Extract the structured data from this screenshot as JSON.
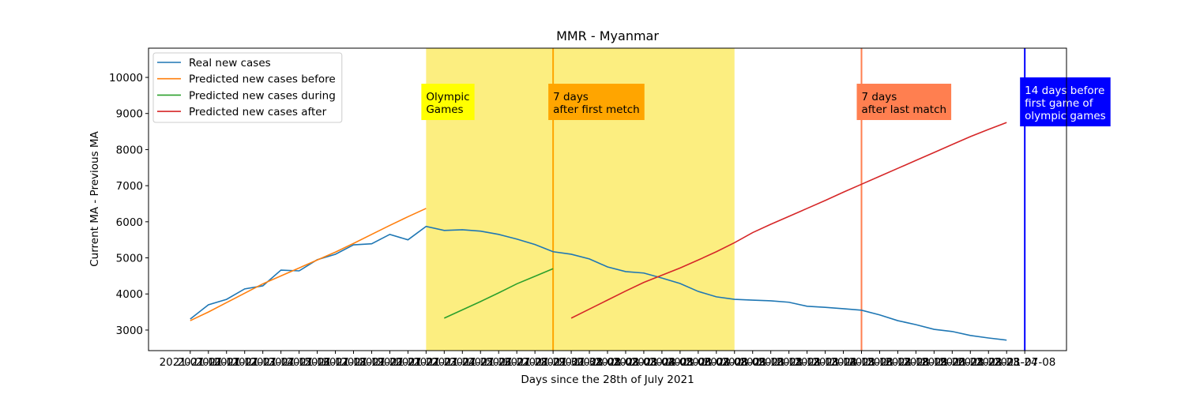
{
  "chart_data": {
    "type": "line",
    "title": "MMR - Myanmar",
    "xlabel": "Days since the 28th of July 2021",
    "ylabel": "Current MA - Previous MA",
    "categories": [
      "2021-07-10",
      "2021-07-11",
      "2021-07-12",
      "2021-07-13",
      "2021-07-14",
      "2021-07-15",
      "2021-07-16",
      "2021-07-17",
      "2021-07-18",
      "2021-07-19",
      "2021-07-20",
      "2021-07-21",
      "2021-07-22",
      "2021-07-23",
      "2021-07-24",
      "2021-07-25",
      "2021-07-26",
      "2021-07-27",
      "2021-07-28",
      "2021-07-29",
      "2021-07-30",
      "2021-07-31",
      "2021-08-01",
      "2021-08-02",
      "2021-08-03",
      "2021-08-04",
      "2021-08-05",
      "2021-08-06",
      "2021-08-07",
      "2021-08-08",
      "2021-08-09",
      "2021-08-10",
      "2021-08-11",
      "2021-08-12",
      "2021-08-13",
      "2021-08-14",
      "2021-08-15",
      "2021-08-16",
      "2021-08-17",
      "2021-08-18",
      "2021-08-19",
      "2021-08-20",
      "2021-08-21",
      "2021-08-22",
      "2021-08-23",
      "2021-08-24",
      "2021-07-08"
    ],
    "series": [
      {
        "name": "Real new cases",
        "color": "#1f77b4",
        "values": [
          3306,
          3700,
          3850,
          4140,
          4225,
          4660,
          4640,
          4950,
          5100,
          5360,
          5390,
          5650,
          5500,
          5870,
          5760,
          5780,
          5740,
          5650,
          5520,
          5370,
          5170,
          5100,
          4970,
          4750,
          4620,
          4580,
          4440,
          4290,
          4070,
          3920,
          3850,
          3830,
          3810,
          3770,
          3660,
          3630,
          3590,
          3550,
          3420,
          3260,
          3150,
          3020,
          2960,
          2850,
          2780,
          2720,
          null
        ]
      },
      {
        "name": "Predicted new cases before",
        "color": "#ff7f0e",
        "values": [
          3260,
          3500,
          3760,
          4020,
          4280,
          4500,
          4720,
          4940,
          5160,
          5400,
          5650,
          5900,
          6140,
          6370,
          null,
          null,
          null,
          null,
          null,
          null,
          null,
          null,
          null,
          null,
          null,
          null,
          null,
          null,
          null,
          null,
          null,
          null,
          null,
          null,
          null,
          null,
          null,
          null,
          null,
          null,
          null,
          null,
          null,
          null,
          null,
          null,
          null
        ]
      },
      {
        "name": "Predicted new cases during",
        "color": "#2ca02c",
        "values": [
          null,
          null,
          null,
          null,
          null,
          null,
          null,
          null,
          null,
          null,
          null,
          null,
          null,
          null,
          3330,
          3560,
          3790,
          4030,
          4280,
          4490,
          4700,
          null,
          null,
          null,
          null,
          null,
          null,
          null,
          null,
          null,
          null,
          null,
          null,
          null,
          null,
          null,
          null,
          null,
          null,
          null,
          null,
          null,
          null,
          null,
          null,
          null,
          null
        ]
      },
      {
        "name": "Predicted new cases after",
        "color": "#d62728",
        "values": [
          null,
          null,
          null,
          null,
          null,
          null,
          null,
          null,
          null,
          null,
          null,
          null,
          null,
          null,
          null,
          null,
          null,
          null,
          null,
          null,
          null,
          3330,
          3580,
          3830,
          4080,
          4320,
          4520,
          4720,
          4940,
          5170,
          5420,
          5700,
          5930,
          6150,
          6370,
          6590,
          6820,
          7040,
          7260,
          7480,
          7700,
          7920,
          8140,
          8360,
          8560,
          8750,
          null
        ]
      }
    ],
    "spans": [
      {
        "x": [
          13,
          30
        ],
        "color": "#fcee80"
      }
    ],
    "vlines": [
      {
        "x": 20,
        "color": "#ffa500",
        "label": [
          "7 days",
          "after first metch"
        ],
        "box_color": "#ffa500",
        "text_color": "#000000"
      },
      {
        "x": 37,
        "color": "#ff7f50",
        "label": [
          "7 days",
          "after last match"
        ],
        "box_color": "#ff7f50",
        "text_color": "#000000"
      },
      {
        "x": 46,
        "color": "#0000ff",
        "label": [
          "14 days before",
          "first game of",
          "olympic games"
        ],
        "box_color": "#0000ff",
        "text_color": "#ffffff"
      }
    ],
    "annotations": [
      {
        "x": 13,
        "label": [
          "Olympic",
          "Games"
        ],
        "box_color": "#ffff00",
        "text_color": "#000000"
      }
    ],
    "annotation_y": 9300,
    "xlim": [
      -2.3,
      48.3
    ],
    "ylim": [
      2430,
      10810
    ],
    "yticks": [
      3000,
      4000,
      5000,
      6000,
      7000,
      8000,
      9000,
      10000
    ],
    "legend": "upper left"
  }
}
